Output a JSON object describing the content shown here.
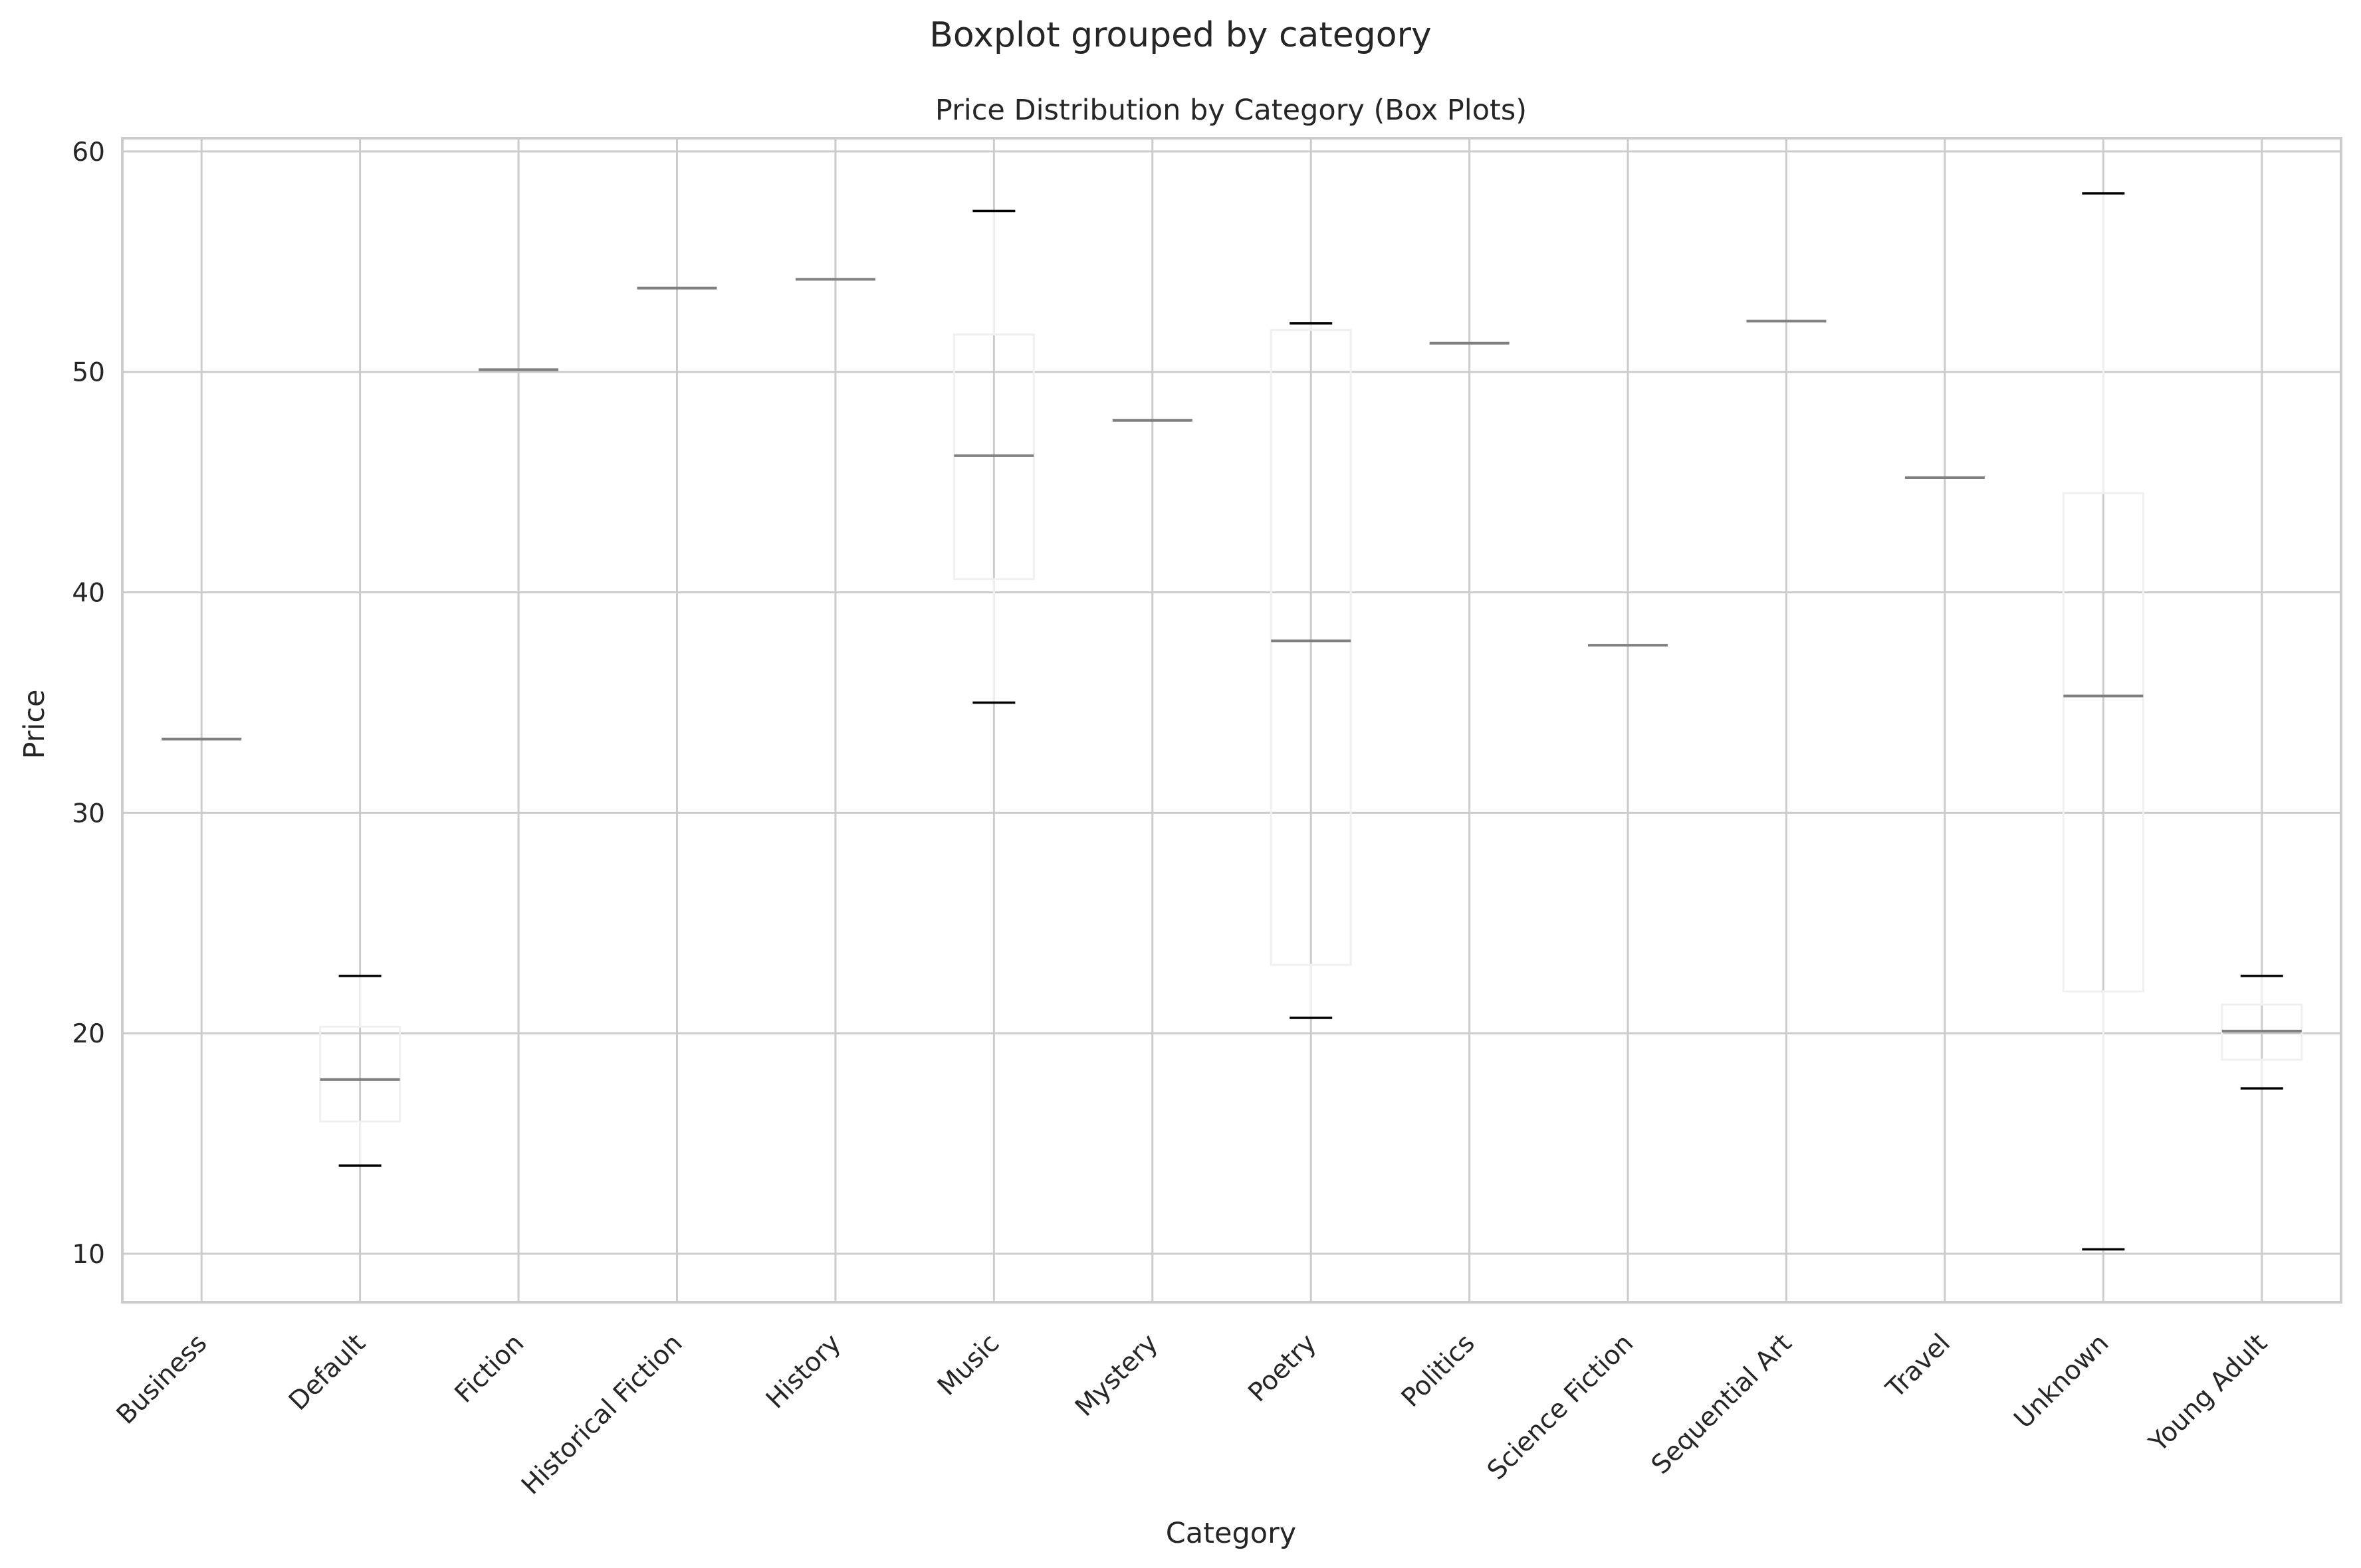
{
  "figure": {
    "suptitle": "Boxplot grouped by category"
  },
  "chart_data": {
    "type": "box",
    "title": "Price Distribution by Category (Box Plots)",
    "xlabel": "Category",
    "ylabel": "Price",
    "ylim": [
      7.8,
      60.6
    ],
    "yticks": [
      10,
      20,
      30,
      40,
      50,
      60
    ],
    "grid": true,
    "categories": [
      "Business",
      "Default",
      "Fiction",
      "Historical Fiction",
      "History",
      "Music",
      "Mystery",
      "Poetry",
      "Politics",
      "Science Fiction",
      "Sequential Art",
      "Travel",
      "Unknown",
      "Young Adult"
    ],
    "boxes": [
      {
        "category": "Business",
        "whislo": 33.34,
        "q1": 33.34,
        "med": 33.34,
        "q3": 33.34,
        "whishi": 33.34
      },
      {
        "category": "Default",
        "whislo": 14.0,
        "q1": 16.0,
        "med": 17.9,
        "q3": 20.3,
        "whishi": 22.6
      },
      {
        "category": "Fiction",
        "whislo": 50.1,
        "q1": 50.1,
        "med": 50.1,
        "q3": 50.1,
        "whishi": 50.1
      },
      {
        "category": "Historical Fiction",
        "whislo": 53.8,
        "q1": 53.8,
        "med": 53.8,
        "q3": 53.8,
        "whishi": 53.8
      },
      {
        "category": "History",
        "whislo": 54.2,
        "q1": 54.2,
        "med": 54.2,
        "q3": 54.2,
        "whishi": 54.2
      },
      {
        "category": "Music",
        "whislo": 35.0,
        "q1": 40.6,
        "med": 46.2,
        "q3": 51.7,
        "whishi": 57.3
      },
      {
        "category": "Mystery",
        "whislo": 47.8,
        "q1": 47.8,
        "med": 47.8,
        "q3": 47.8,
        "whishi": 47.8
      },
      {
        "category": "Poetry",
        "whislo": 20.7,
        "q1": 23.1,
        "med": 37.8,
        "q3": 51.9,
        "whishi": 52.2
      },
      {
        "category": "Politics",
        "whislo": 51.3,
        "q1": 51.3,
        "med": 51.3,
        "q3": 51.3,
        "whishi": 51.3
      },
      {
        "category": "Science Fiction",
        "whislo": 37.6,
        "q1": 37.6,
        "med": 37.6,
        "q3": 37.6,
        "whishi": 37.6
      },
      {
        "category": "Sequential Art",
        "whislo": 52.3,
        "q1": 52.3,
        "med": 52.3,
        "q3": 52.3,
        "whishi": 52.3
      },
      {
        "category": "Travel",
        "whislo": 45.2,
        "q1": 45.2,
        "med": 45.2,
        "q3": 45.2,
        "whishi": 45.2
      },
      {
        "category": "Unknown",
        "whislo": 10.2,
        "q1": 21.9,
        "med": 35.3,
        "q3": 44.5,
        "whishi": 58.1
      },
      {
        "category": "Young Adult",
        "whislo": 17.5,
        "q1": 18.8,
        "med": 20.1,
        "q3": 21.3,
        "whishi": 22.6
      }
    ],
    "colors": {
      "grid": "#cccccc",
      "spine": "#cccccc",
      "box": "#f0f0f0",
      "median": "#808080",
      "cap": "#000000",
      "text": "#262626"
    }
  }
}
